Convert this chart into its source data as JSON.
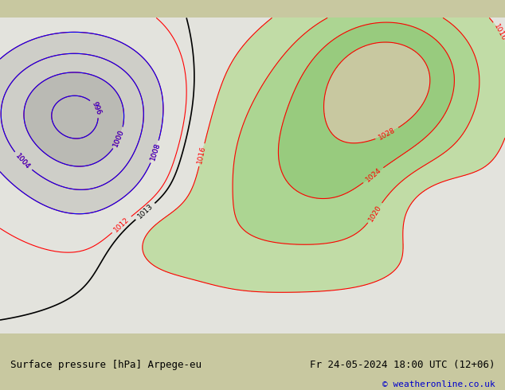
{
  "title_left": "Surface pressure [hPa] Arpege-eu",
  "title_right": "Fr 24-05-2024 18:00 UTC (12+06)",
  "credit": "© weatheronline.co.uk",
  "bg_color": "#c8c8a0",
  "land_color": "#c8c8a0",
  "sea_color": "#c8c8a0",
  "europe_fill": "#c8d8b0",
  "high_fill": "#c8e8c0",
  "low_fill": "#d8d8d8",
  "label_fontsize": 9,
  "credit_color": "#0000cc",
  "bottom_bar_color": "#e8e8e8",
  "figsize": [
    6.34,
    4.9
  ],
  "dpi": 100
}
